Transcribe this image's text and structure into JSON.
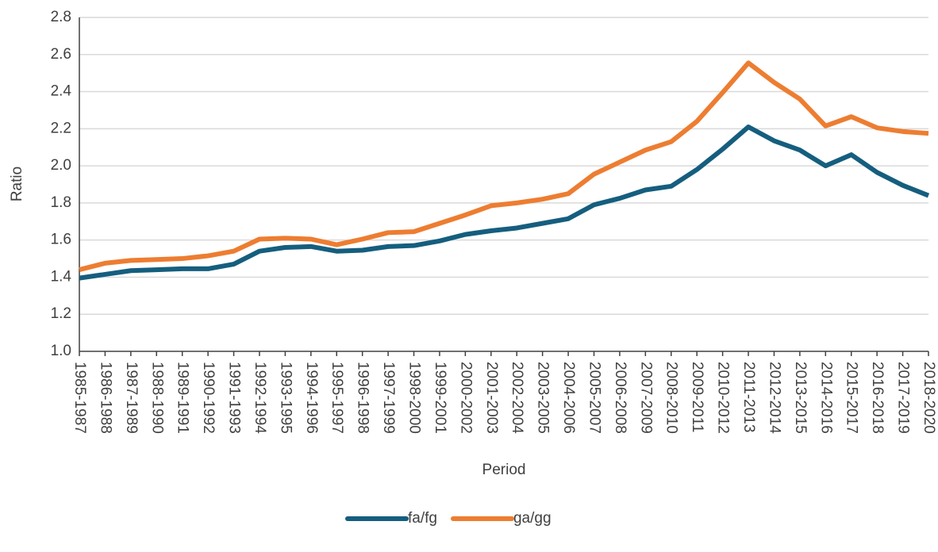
{
  "chart_data": {
    "type": "line",
    "x_label": "Period",
    "y_label": "Ratio",
    "categories": [
      "1985-1987",
      "1986-1988",
      "1987-1989",
      "1988-1990",
      "1989-1991",
      "1990-1992",
      "1991-1993",
      "1992-1994",
      "1993-1995",
      "1994-1996",
      "1995-1997",
      "1996-1998",
      "1997-1999",
      "1998-2000",
      "1999-2001",
      "2000-2002",
      "2001-2003",
      "2002-2004",
      "2003-2005",
      "2004-2006",
      "2005-2007",
      "2006-2008",
      "2007-2009",
      "2008-2010",
      "2009-2011",
      "2010-2012",
      "2011-2013",
      "2012-2014",
      "2013-2015",
      "2014-2016",
      "2015-2017",
      "2016-2018",
      "2017-2019",
      "2018-2020"
    ],
    "series": [
      {
        "name": "fa/fg",
        "color": "#155e7e",
        "values": [
          1.395,
          1.415,
          1.435,
          1.44,
          1.445,
          1.445,
          1.47,
          1.54,
          1.56,
          1.565,
          1.54,
          1.545,
          1.565,
          1.57,
          1.595,
          1.63,
          1.65,
          1.665,
          1.69,
          1.715,
          1.79,
          1.825,
          1.87,
          1.89,
          1.98,
          2.09,
          2.21,
          2.135,
          2.085,
          2.0,
          2.06,
          1.965,
          1.895,
          1.84
        ]
      },
      {
        "name": "ga/gg",
        "color": "#ed7d31",
        "values": [
          1.44,
          1.475,
          1.49,
          1.495,
          1.5,
          1.515,
          1.54,
          1.605,
          1.61,
          1.605,
          1.575,
          1.605,
          1.64,
          1.645,
          1.69,
          1.735,
          1.785,
          1.8,
          1.82,
          1.85,
          1.955,
          2.02,
          2.085,
          2.13,
          2.24,
          2.395,
          2.555,
          2.45,
          2.36,
          2.215,
          2.265,
          2.205,
          2.185,
          2.175
        ]
      }
    ],
    "ylim": [
      1.0,
      2.8
    ],
    "yticks": [
      {
        "value": 1.0,
        "label": "1.0"
      },
      {
        "value": 1.2,
        "label": "1.2"
      },
      {
        "value": 1.4,
        "label": "1.4"
      },
      {
        "value": 1.6,
        "label": "1.6"
      },
      {
        "value": 1.8,
        "label": "1.8"
      },
      {
        "value": 2.0,
        "label": "2.0"
      },
      {
        "value": 2.2,
        "label": "2.2"
      },
      {
        "value": 2.4,
        "label": "2.4"
      },
      {
        "value": 2.6,
        "label": "2.6"
      },
      {
        "value": 2.8,
        "label": "2.8"
      }
    ],
    "grid": true,
    "legend": "bottom"
  }
}
